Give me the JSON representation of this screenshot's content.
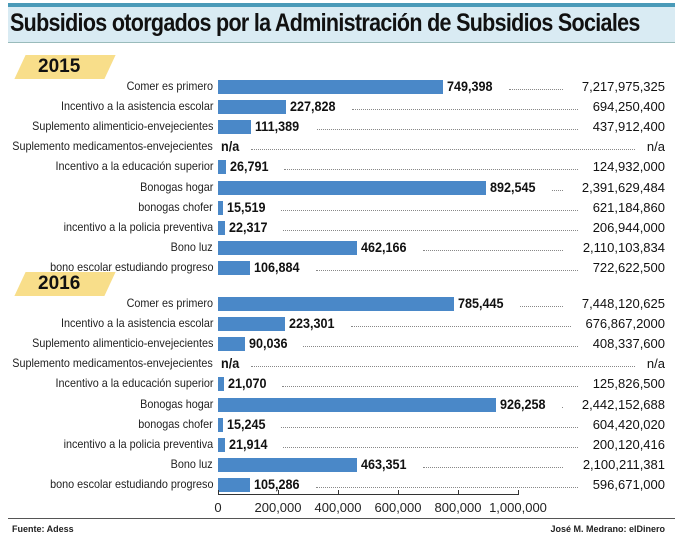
{
  "chart_data": {
    "type": "bar",
    "orientation": "horizontal",
    "title": "Subsidios otorgados por la Administración de Subsidios Sociales",
    "xlim": [
      0,
      1000000
    ],
    "xticks": [
      "0",
      "200,000",
      "400,000",
      "600,000",
      "800,000",
      "1,000,000"
    ],
    "bar_color": "#4a88c8",
    "grid": false,
    "panels": [
      {
        "year": "2015",
        "rows": [
          {
            "label": "Comer es primero",
            "value": 749398,
            "value_label": "749,398",
            "amount": "7,217,975,325"
          },
          {
            "label": "Incentivo a la asistencia escolar",
            "value": 227828,
            "value_label": "227,828",
            "amount": "694,250,400"
          },
          {
            "label": "Suplemento alimenticio-envejecientes",
            "value": 111389,
            "value_label": "111,389",
            "amount": "437,912,400"
          },
          {
            "label": "Suplemento medicamentos-envejecientes",
            "value": null,
            "value_label": "n/a",
            "amount": "n/a"
          },
          {
            "label": "Incentivo a la educación superior",
            "value": 26791,
            "value_label": "26,791",
            "amount": "124,932,000"
          },
          {
            "label": "Bonogas hogar",
            "value": 892545,
            "value_label": "892,545",
            "amount": "2,391,629,484"
          },
          {
            "label": "bonogas chofer",
            "value": 15519,
            "value_label": "15,519",
            "amount": "621,184,860"
          },
          {
            "label": "incentivo a la policia preventiva",
            "value": 22317,
            "value_label": "22,317",
            "amount": "206,944,000"
          },
          {
            "label": "Bono luz",
            "value": 462166,
            "value_label": "462,166",
            "amount": "2,110,103,834"
          },
          {
            "label": "bono escolar estudiando progreso",
            "value": 106884,
            "value_label": "106,884",
            "amount": "722,622,500"
          }
        ]
      },
      {
        "year": "2016",
        "rows": [
          {
            "label": "Comer es primero",
            "value": 785445,
            "value_label": "785,445",
            "amount": "7,448,120,625"
          },
          {
            "label": "Incentivo a la asistencia escolar",
            "value": 223301,
            "value_label": "223,301",
            "amount": "676,867,2000"
          },
          {
            "label": "Suplemento alimenticio-envejecientes",
            "value": 90036,
            "value_label": "90,036",
            "amount": "408,337,600"
          },
          {
            "label": "Suplemento medicamentos-envejecientes",
            "value": null,
            "value_label": "n/a",
            "amount": "n/a"
          },
          {
            "label": "Incentivo a la educación superior",
            "value": 21070,
            "value_label": "21,070",
            "amount": "125,826,500"
          },
          {
            "label": "Bonogas hogar",
            "value": 926258,
            "value_label": "926,258",
            "amount": "2,442,152,688"
          },
          {
            "label": "bonogas chofer",
            "value": 15245,
            "value_label": "15,245",
            "amount": "604,420,020"
          },
          {
            "label": "incentivo a la policia preventiva",
            "value": 21914,
            "value_label": "21,914",
            "amount": "200,120,416"
          },
          {
            "label": "Bono luz",
            "value": 463351,
            "value_label": "463,351",
            "amount": "2,100,211,381"
          },
          {
            "label": "bono escolar estudiando progreso",
            "value": 105286,
            "value_label": "105,286",
            "amount": "596,671,000"
          }
        ]
      }
    ]
  },
  "footer": {
    "source": "Fuente: Adess",
    "credit": "José M. Medrano: elDinero"
  }
}
